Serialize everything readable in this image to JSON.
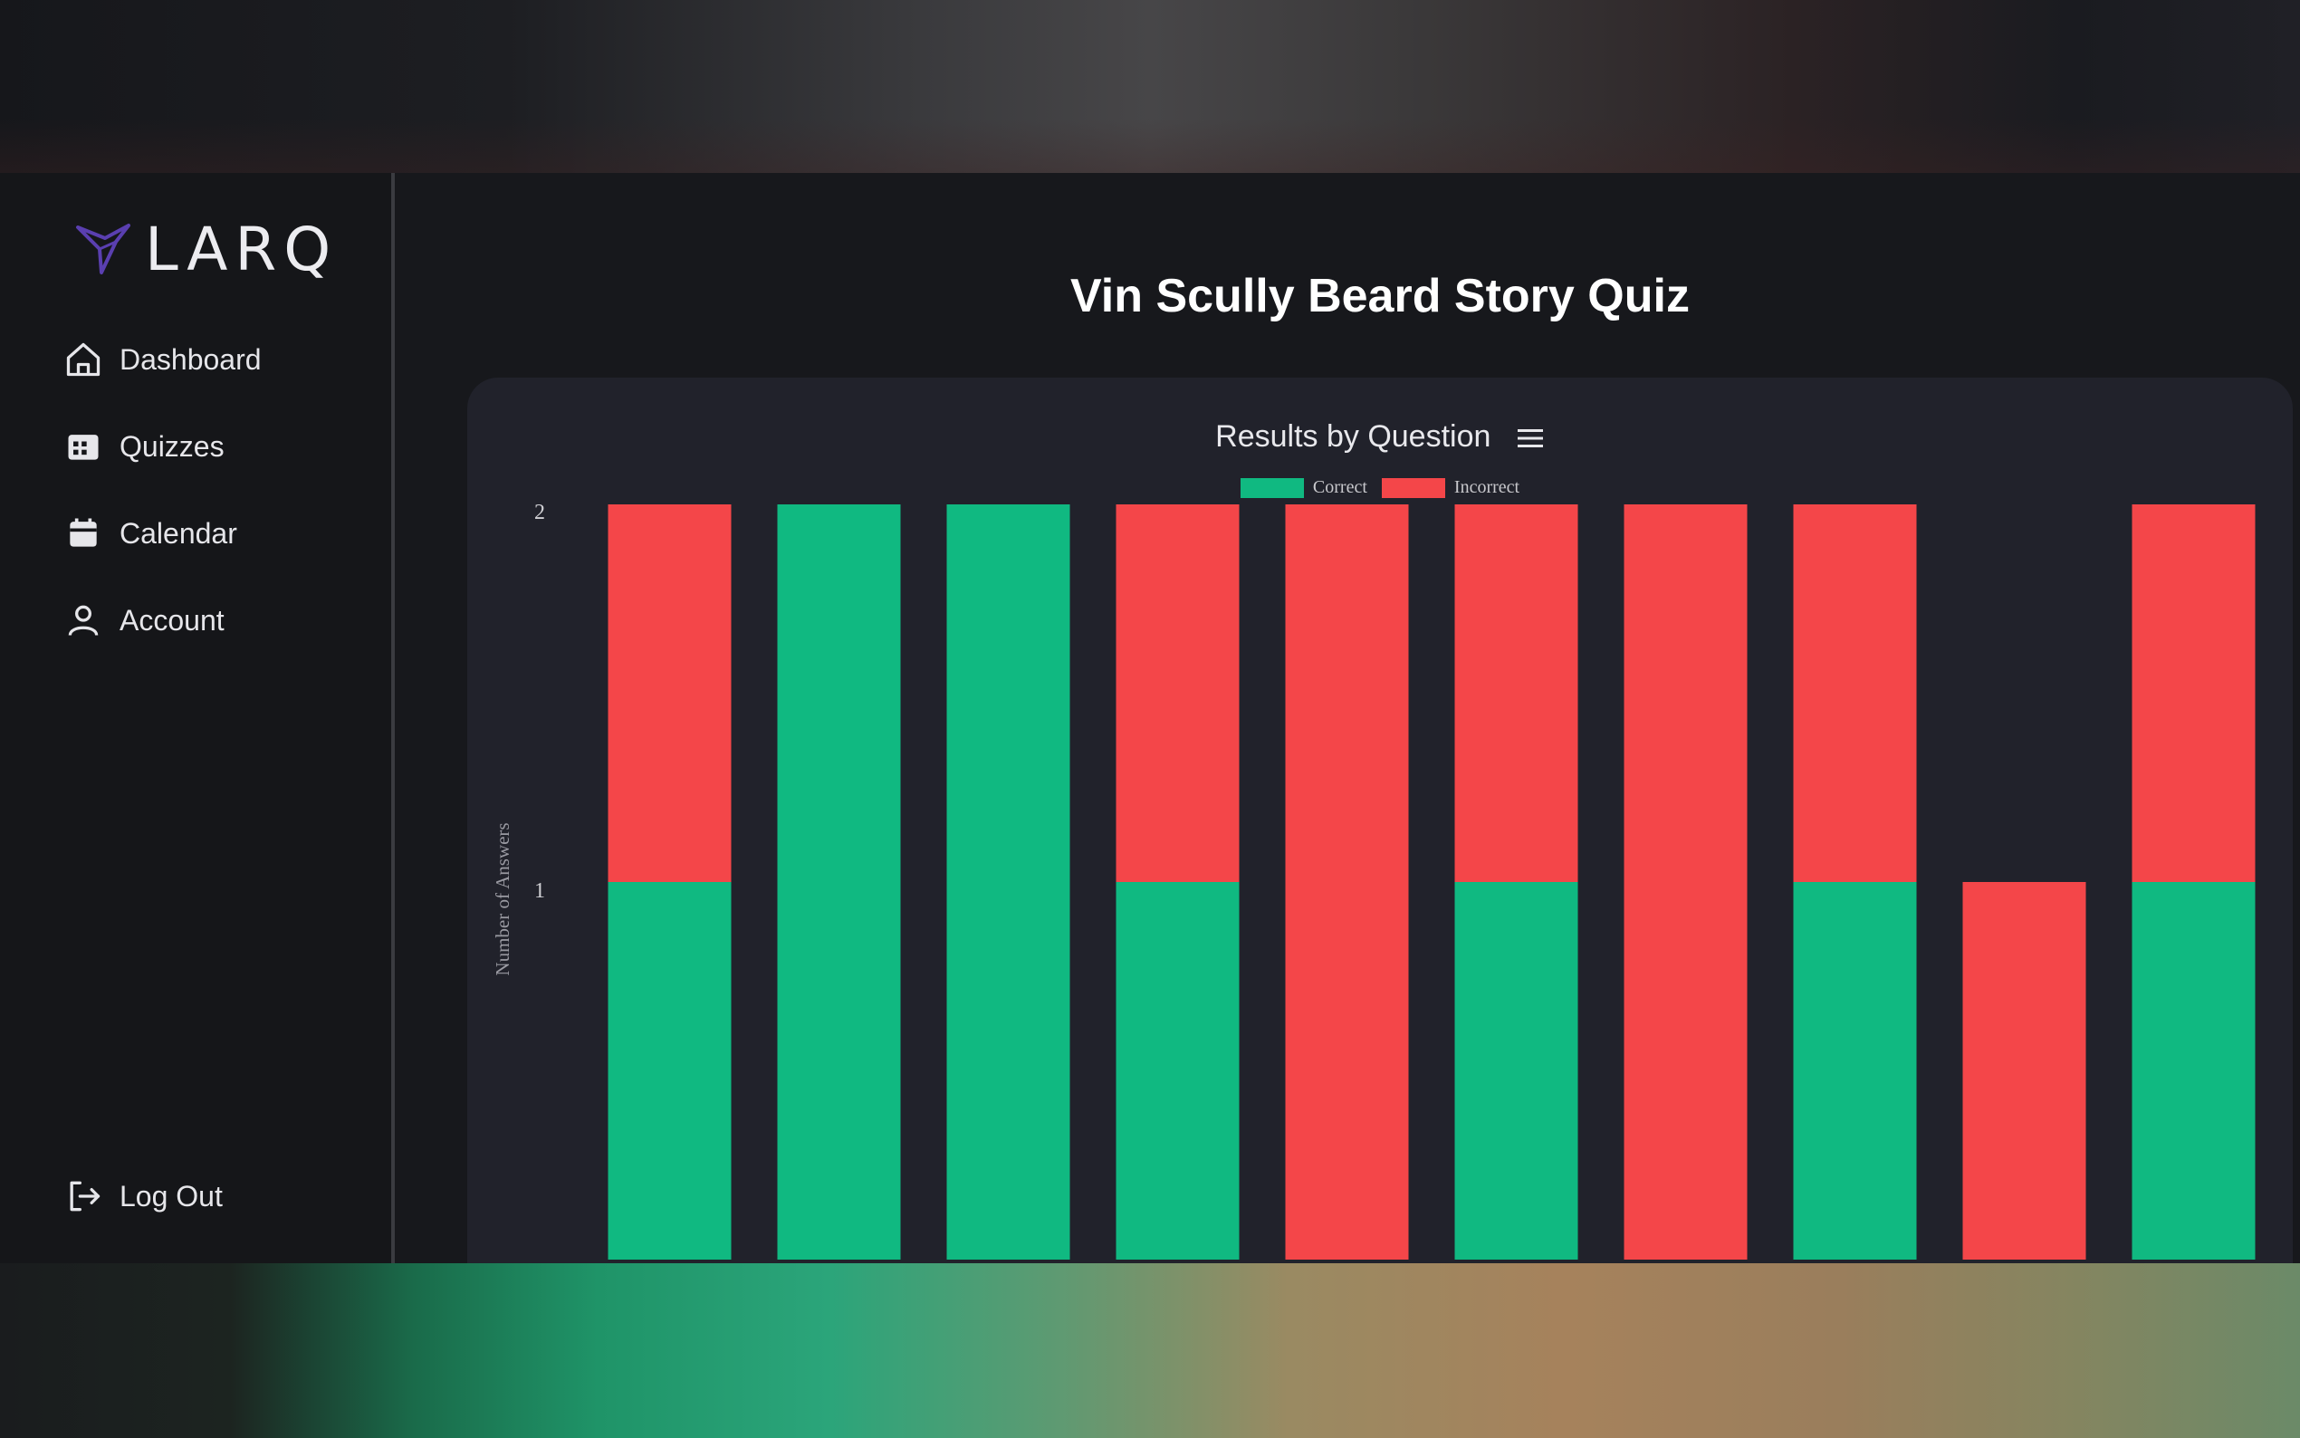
{
  "app": {
    "logo_text": "LARQ"
  },
  "sidebar": {
    "items": [
      {
        "label": "Dashboard",
        "icon": "home-icon"
      },
      {
        "label": "Quizzes",
        "icon": "quizzes-icon"
      },
      {
        "label": "Calendar",
        "icon": "calendar-icon"
      },
      {
        "label": "Account",
        "icon": "user-icon"
      }
    ],
    "logout_label": "Log Out",
    "logout_icon": "logout-icon"
  },
  "main": {
    "title": "Vin Scully Beard Story Quiz"
  },
  "colors": {
    "correct": "#10b981",
    "incorrect": "#f44649",
    "logo_accent": "#5a3fb0"
  },
  "chart_data": {
    "type": "bar",
    "stacked": true,
    "title": "Results by Question",
    "ylabel": "Number of Answers",
    "ylim": [
      0,
      2
    ],
    "yticks": [
      "2",
      "1"
    ],
    "legend": [
      "Correct",
      "Incorrect"
    ],
    "legend_position": "top",
    "series": [
      {
        "name": "Correct",
        "color": "#10b981",
        "values": [
          1,
          2,
          2,
          1,
          0,
          1,
          0,
          1,
          0,
          1
        ]
      },
      {
        "name": "Incorrect",
        "color": "#f44649",
        "values": [
          1,
          0,
          0,
          1,
          2,
          1,
          2,
          1,
          1,
          1
        ]
      }
    ]
  }
}
